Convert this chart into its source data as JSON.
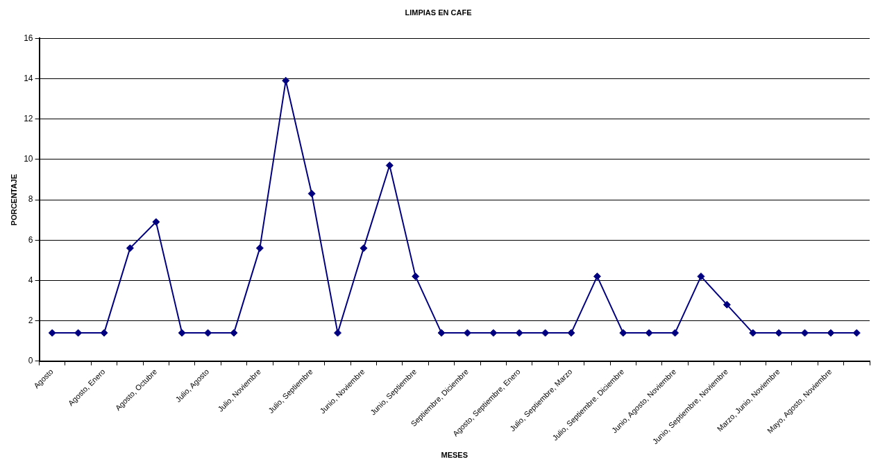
{
  "chart_data": {
    "type": "line",
    "title": "LIMPIAS EN CAFE",
    "xlabel": "MESES",
    "ylabel": "PORCENTAJE",
    "categories": [
      "Agosto",
      null,
      "Agosto, Enero",
      null,
      "Agosto, Octubre",
      null,
      "Julio, Agosto",
      null,
      "Julio, Noviembre",
      null,
      "Julio, Septiembre",
      null,
      "Junio, Noviembre",
      null,
      "Junio, Septiembre",
      null,
      "Septiembre, Diciembre",
      null,
      "Agosto, Septiembre, Enero",
      null,
      "Julio, Septiembre, Marzo",
      null,
      "Julio, Septiembre. Diciembre",
      null,
      "Junio, Agosto, Noviembre",
      null,
      "Junio, Septiembre, Noviembre",
      null,
      "Marzo, Junio, Noviembre",
      null,
      "Mayo, Agosto, Noviembre",
      null
    ],
    "series": [
      {
        "color": "#000080",
        "values": [
          1.4,
          1.4,
          1.4,
          5.6,
          6.9,
          1.4,
          1.4,
          1.4,
          5.6,
          13.9,
          8.3,
          1.4,
          5.6,
          9.7,
          4.2,
          1.4,
          1.4,
          1.4,
          1.4,
          1.4,
          1.4,
          4.2,
          1.4,
          1.4,
          1.4,
          4.2,
          2.8,
          1.4,
          1.4,
          1.4,
          1.4,
          1.4
        ]
      }
    ],
    "ylim": [
      0,
      16
    ],
    "yticks": [
      0,
      2,
      4,
      6,
      8,
      10,
      12,
      14,
      16
    ],
    "grid": "y",
    "legend": false,
    "marker": "diamond",
    "line_style": "solid"
  }
}
